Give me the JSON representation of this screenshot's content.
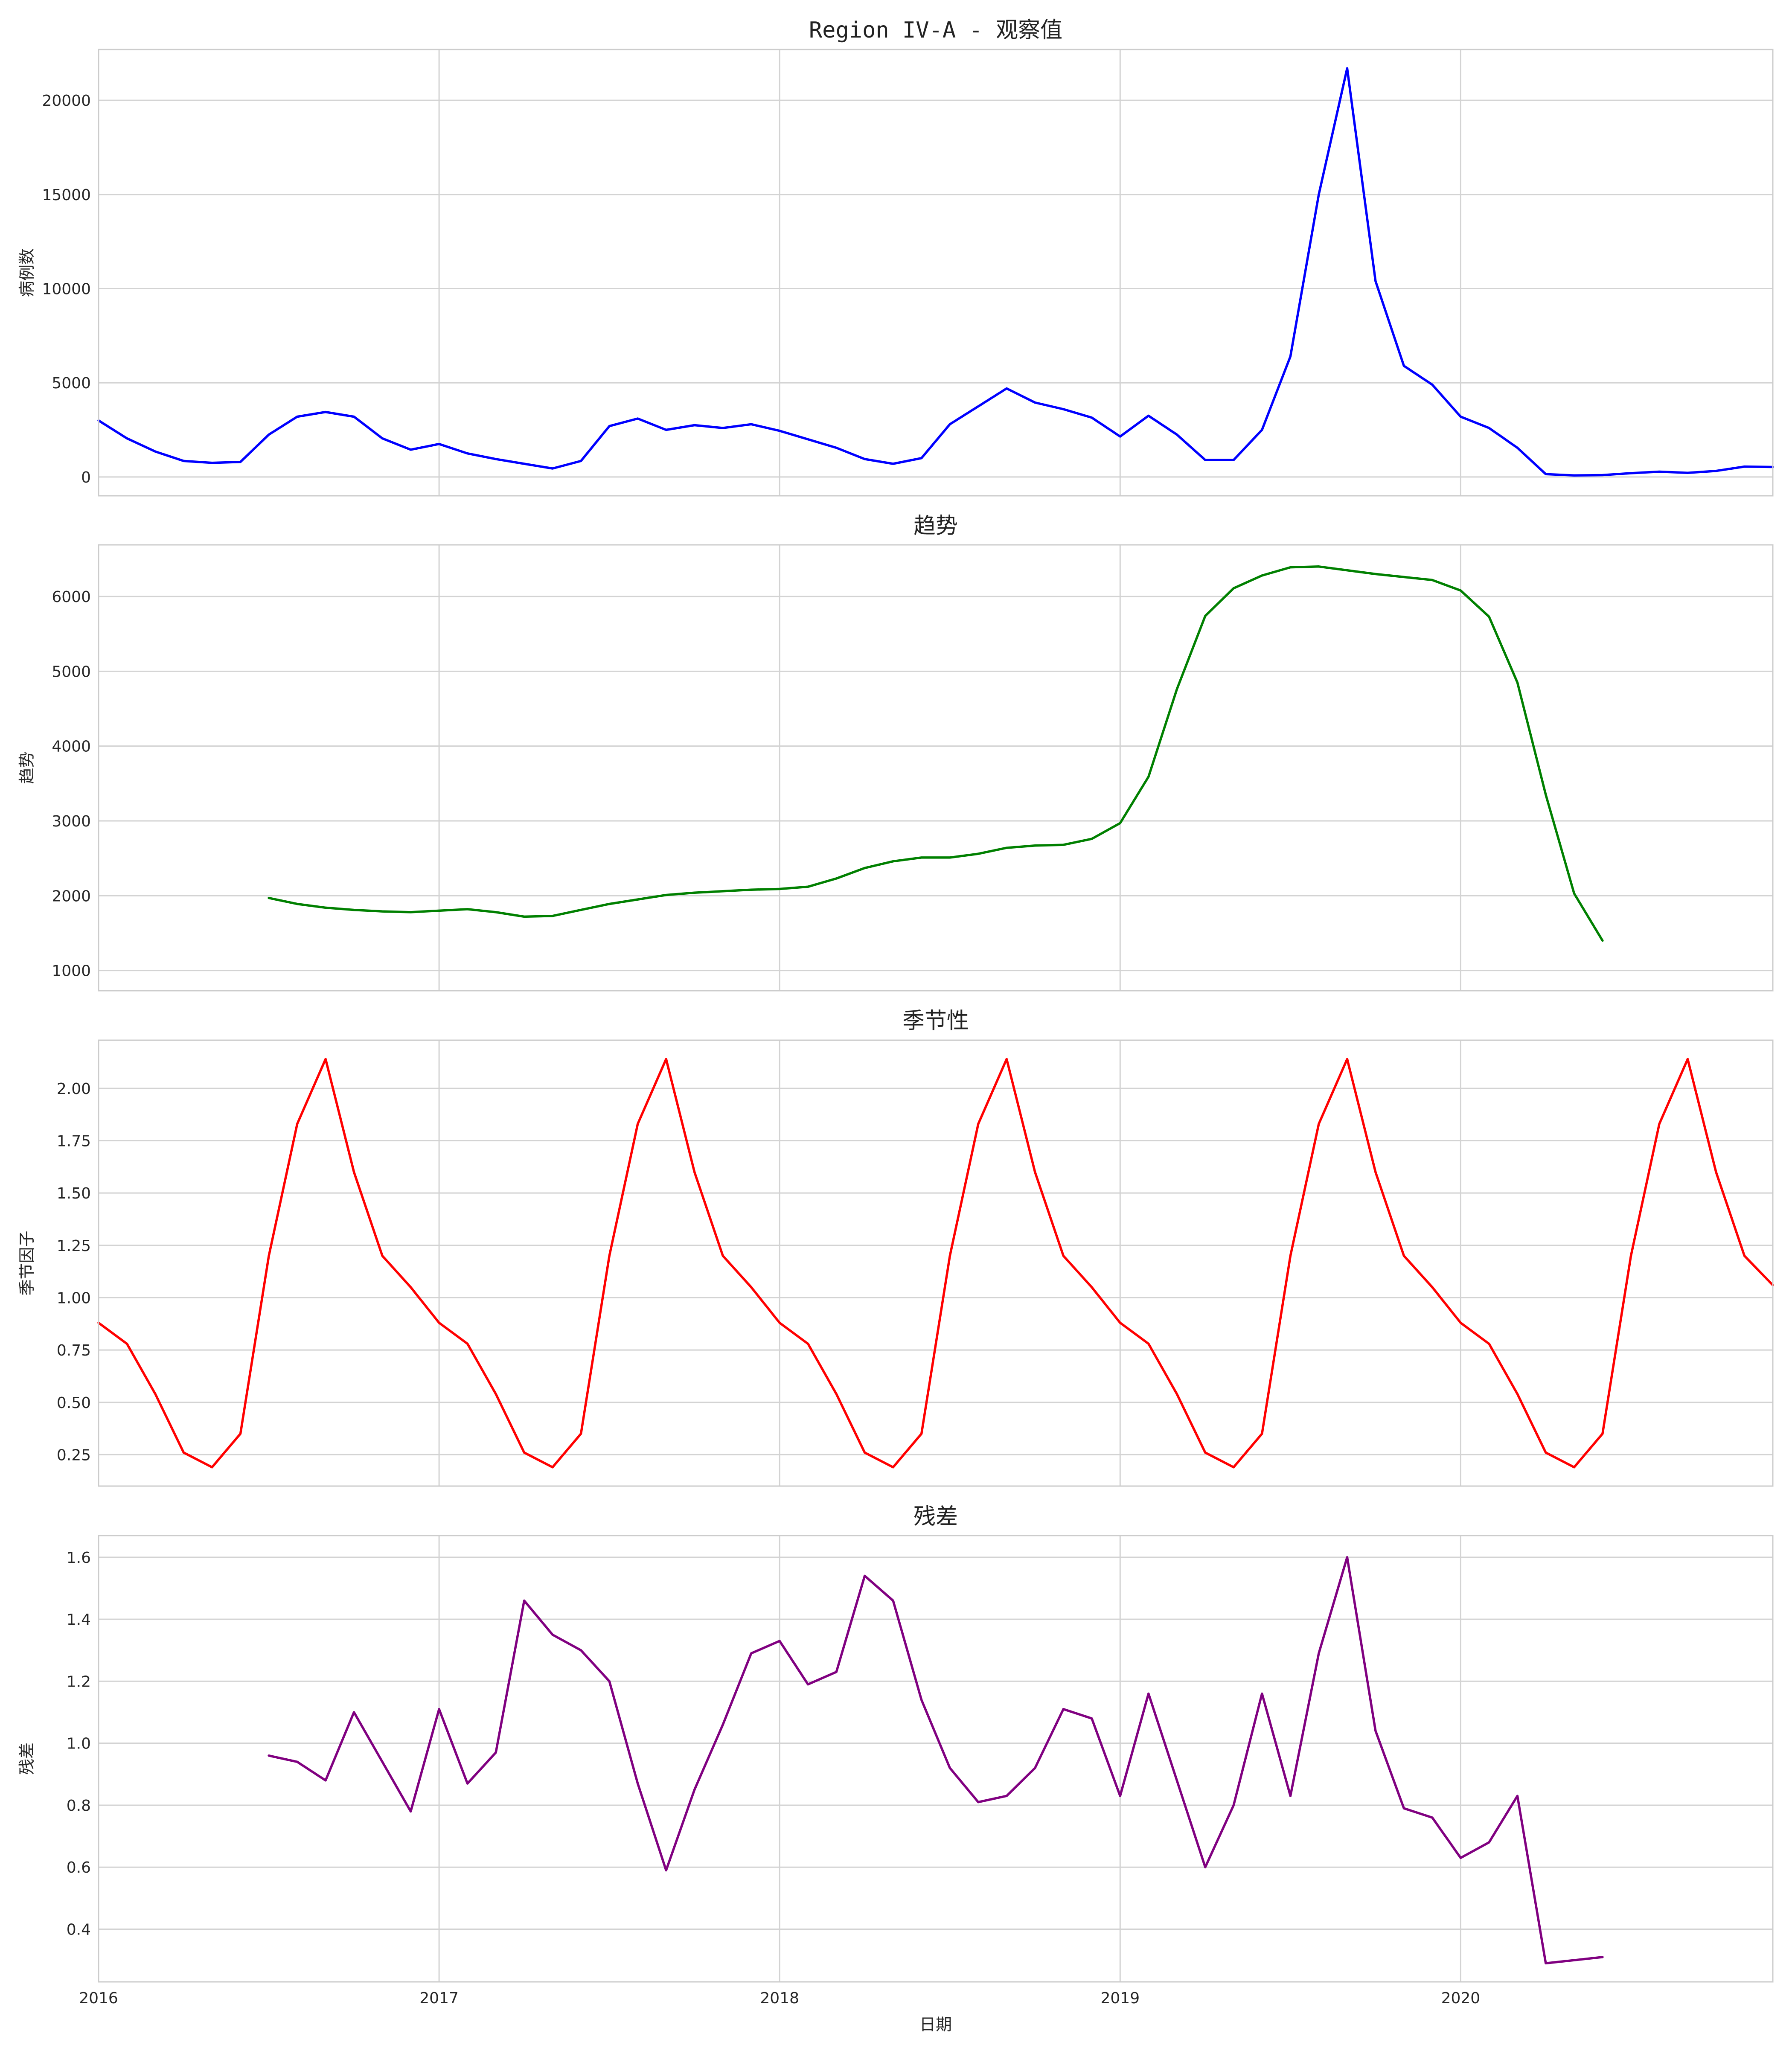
{
  "chart_data": [
    {
      "type": "line",
      "title": "Region IV-A - 观察值",
      "xlabel": "",
      "ylabel": "病例数",
      "color": "#0000ff",
      "grid": true,
      "xlim": [
        "2016-01",
        "2020-12"
      ],
      "ylim": [
        -1000,
        22700
      ],
      "yticks": [
        0,
        5000,
        10000,
        15000,
        20000
      ],
      "ytick_labels": [
        "0",
        "5000",
        "10000",
        "15000",
        "20000"
      ],
      "xticks": [
        "2016",
        "2017",
        "2018",
        "2019",
        "2020"
      ],
      "show_xtick_labels": false,
      "series": [
        {
          "x": [
            "2016-01",
            "2016-02",
            "2016-03",
            "2016-04",
            "2016-05",
            "2016-06",
            "2016-07",
            "2016-08",
            "2016-09",
            "2016-10",
            "2016-11",
            "2016-12",
            "2017-01",
            "2017-02",
            "2017-03",
            "2017-04",
            "2017-05",
            "2017-06",
            "2017-07",
            "2017-08",
            "2017-09",
            "2017-10",
            "2017-11",
            "2017-12",
            "2018-01",
            "2018-02",
            "2018-03",
            "2018-04",
            "2018-05",
            "2018-06",
            "2018-07",
            "2018-08",
            "2018-09",
            "2018-10",
            "2018-11",
            "2018-12",
            "2019-01",
            "2019-02",
            "2019-03",
            "2019-04",
            "2019-05",
            "2019-06",
            "2019-07",
            "2019-08",
            "2019-09",
            "2019-10",
            "2019-11",
            "2019-12",
            "2020-01",
            "2020-02",
            "2020-03",
            "2020-04",
            "2020-05",
            "2020-06",
            "2020-07",
            "2020-08",
            "2020-09",
            "2020-10",
            "2020-11",
            "2020-12"
          ],
          "values": [
            3000,
            2050,
            1350,
            850,
            750,
            800,
            2250,
            3200,
            3450,
            3200,
            2050,
            1450,
            1750,
            1250,
            950,
            700,
            450,
            850,
            2700,
            3100,
            2500,
            2750,
            2600,
            2800,
            2450,
            2000,
            1550,
            950,
            700,
            1000,
            2800,
            3750,
            4700,
            3950,
            3600,
            3150,
            2150,
            3250,
            2250,
            900,
            900,
            2500,
            6400,
            15000,
            21700,
            10400,
            5900,
            4900,
            3200,
            2600,
            1550,
            150,
            80,
            100,
            200,
            280,
            220,
            320,
            550,
            530
          ]
        }
      ]
    },
    {
      "type": "line",
      "title": "趋势",
      "xlabel": "",
      "ylabel": "趋势",
      "color": "#008000",
      "grid": true,
      "xlim": [
        "2016-01",
        "2020-12"
      ],
      "ylim": [
        730,
        6690
      ],
      "yticks": [
        1000,
        2000,
        3000,
        4000,
        5000,
        6000
      ],
      "ytick_labels": [
        "1000",
        "2000",
        "3000",
        "4000",
        "5000",
        "6000"
      ],
      "xticks": [
        "2016",
        "2017",
        "2018",
        "2019",
        "2020"
      ],
      "show_xtick_labels": false,
      "series": [
        {
          "x": [
            "2016-07",
            "2016-08",
            "2016-09",
            "2016-10",
            "2016-11",
            "2016-12",
            "2017-01",
            "2017-02",
            "2017-03",
            "2017-04",
            "2017-05",
            "2017-06",
            "2017-07",
            "2017-08",
            "2017-09",
            "2017-10",
            "2017-11",
            "2017-12",
            "2018-01",
            "2018-02",
            "2018-03",
            "2018-04",
            "2018-05",
            "2018-06",
            "2018-07",
            "2018-08",
            "2018-09",
            "2018-10",
            "2018-11",
            "2018-12",
            "2019-01",
            "2019-02",
            "2019-03",
            "2019-04",
            "2019-05",
            "2019-06",
            "2019-07",
            "2019-08",
            "2019-09",
            "2019-10",
            "2019-11",
            "2019-12",
            "2020-01",
            "2020-02",
            "2020-03",
            "2020-04",
            "2020-05",
            "2020-06"
          ],
          "values": [
            1970,
            1890,
            1840,
            1810,
            1790,
            1780,
            1800,
            1820,
            1780,
            1720,
            1730,
            1810,
            1890,
            1950,
            2010,
            2040,
            2060,
            2080,
            2090,
            2120,
            2230,
            2370,
            2460,
            2510,
            2510,
            2560,
            2640,
            2670,
            2680,
            2760,
            2970,
            3590,
            4760,
            5740,
            6110,
            6280,
            6390,
            6400,
            6350,
            6300,
            6260,
            6220,
            6080,
            5730,
            4850,
            3350,
            2030,
            1400
          ]
        }
      ]
    },
    {
      "type": "line",
      "title": "季节性",
      "xlabel": "",
      "ylabel": "季节因子",
      "color": "#ff0000",
      "grid": true,
      "xlim": [
        "2016-01",
        "2020-12"
      ],
      "ylim": [
        0.1,
        2.23
      ],
      "yticks": [
        0.25,
        0.5,
        0.75,
        1.0,
        1.25,
        1.5,
        1.75,
        2.0
      ],
      "ytick_labels": [
        "0.25",
        "0.50",
        "0.75",
        "1.00",
        "1.25",
        "1.50",
        "1.75",
        "2.00"
      ],
      "xticks": [
        "2016",
        "2017",
        "2018",
        "2019",
        "2020"
      ],
      "show_xtick_labels": false,
      "series": [
        {
          "x": [
            "2016-01",
            "2016-02",
            "2016-03",
            "2016-04",
            "2016-05",
            "2016-06",
            "2016-07",
            "2016-08",
            "2016-09",
            "2016-10",
            "2016-11",
            "2016-12",
            "2017-01",
            "2017-02",
            "2017-03",
            "2017-04",
            "2017-05",
            "2017-06",
            "2017-07",
            "2017-08",
            "2017-09",
            "2017-10",
            "2017-11",
            "2017-12",
            "2018-01",
            "2018-02",
            "2018-03",
            "2018-04",
            "2018-05",
            "2018-06",
            "2018-07",
            "2018-08",
            "2018-09",
            "2018-10",
            "2018-11",
            "2018-12",
            "2019-01",
            "2019-02",
            "2019-03",
            "2019-04",
            "2019-05",
            "2019-06",
            "2019-07",
            "2019-08",
            "2019-09",
            "2019-10",
            "2019-11",
            "2019-12",
            "2020-01",
            "2020-02",
            "2020-03",
            "2020-04",
            "2020-05",
            "2020-06",
            "2020-07",
            "2020-08",
            "2020-09",
            "2020-10",
            "2020-11",
            "2020-12"
          ],
          "values": [
            0.88,
            0.78,
            0.54,
            0.26,
            0.19,
            0.35,
            1.2,
            1.83,
            2.14,
            1.6,
            1.2,
            1.05,
            0.88,
            0.78,
            0.54,
            0.26,
            0.19,
            0.35,
            1.2,
            1.83,
            2.14,
            1.6,
            1.2,
            1.05,
            0.88,
            0.78,
            0.54,
            0.26,
            0.19,
            0.35,
            1.2,
            1.83,
            2.14,
            1.6,
            1.2,
            1.05,
            0.88,
            0.78,
            0.54,
            0.26,
            0.19,
            0.35,
            1.2,
            1.83,
            2.14,
            1.6,
            1.2,
            1.05,
            0.88,
            0.78,
            0.54,
            0.26,
            0.19,
            0.35,
            1.2,
            1.83,
            2.14,
            1.6,
            1.2,
            1.06
          ]
        }
      ]
    },
    {
      "type": "line",
      "title": "残差",
      "xlabel": "日期",
      "ylabel": "残差",
      "color": "#800080",
      "grid": true,
      "xlim": [
        "2016-01",
        "2020-12"
      ],
      "ylim": [
        0.23,
        1.67
      ],
      "yticks": [
        0.4,
        0.6,
        0.8,
        1.0,
        1.2,
        1.4,
        1.6
      ],
      "ytick_labels": [
        "0.4",
        "0.6",
        "0.8",
        "1.0",
        "1.2",
        "1.4",
        "1.6"
      ],
      "xticks": [
        "2016",
        "2017",
        "2018",
        "2019",
        "2020"
      ],
      "show_xtick_labels": true,
      "series": [
        {
          "x": [
            "2016-07",
            "2016-08",
            "2016-09",
            "2016-10",
            "2016-11",
            "2016-12",
            "2017-01",
            "2017-02",
            "2017-03",
            "2017-04",
            "2017-05",
            "2017-06",
            "2017-07",
            "2017-08",
            "2017-09",
            "2017-10",
            "2017-11",
            "2017-12",
            "2018-01",
            "2018-02",
            "2018-03",
            "2018-04",
            "2018-05",
            "2018-06",
            "2018-07",
            "2018-08",
            "2018-09",
            "2018-10",
            "2018-11",
            "2018-12",
            "2019-01",
            "2019-02",
            "2019-03",
            "2019-04",
            "2019-05",
            "2019-06",
            "2019-07",
            "2019-08",
            "2019-09",
            "2019-10",
            "2019-11",
            "2019-12",
            "2020-01",
            "2020-02",
            "2020-03",
            "2020-04",
            "2020-05",
            "2020-06"
          ],
          "values": [
            0.96,
            0.94,
            0.88,
            1.1,
            0.94,
            0.78,
            1.11,
            0.87,
            0.97,
            1.46,
            1.35,
            1.3,
            1.2,
            0.87,
            0.59,
            0.85,
            1.06,
            1.29,
            1.33,
            1.19,
            1.23,
            1.54,
            1.46,
            1.14,
            0.92,
            0.81,
            0.83,
            0.92,
            1.11,
            1.08,
            0.83,
            1.16,
            0.88,
            0.6,
            0.8,
            1.16,
            0.83,
            1.29,
            1.6,
            1.04,
            0.79,
            0.76,
            0.63,
            0.68,
            0.83,
            0.29,
            0.3,
            0.31
          ]
        }
      ]
    }
  ]
}
